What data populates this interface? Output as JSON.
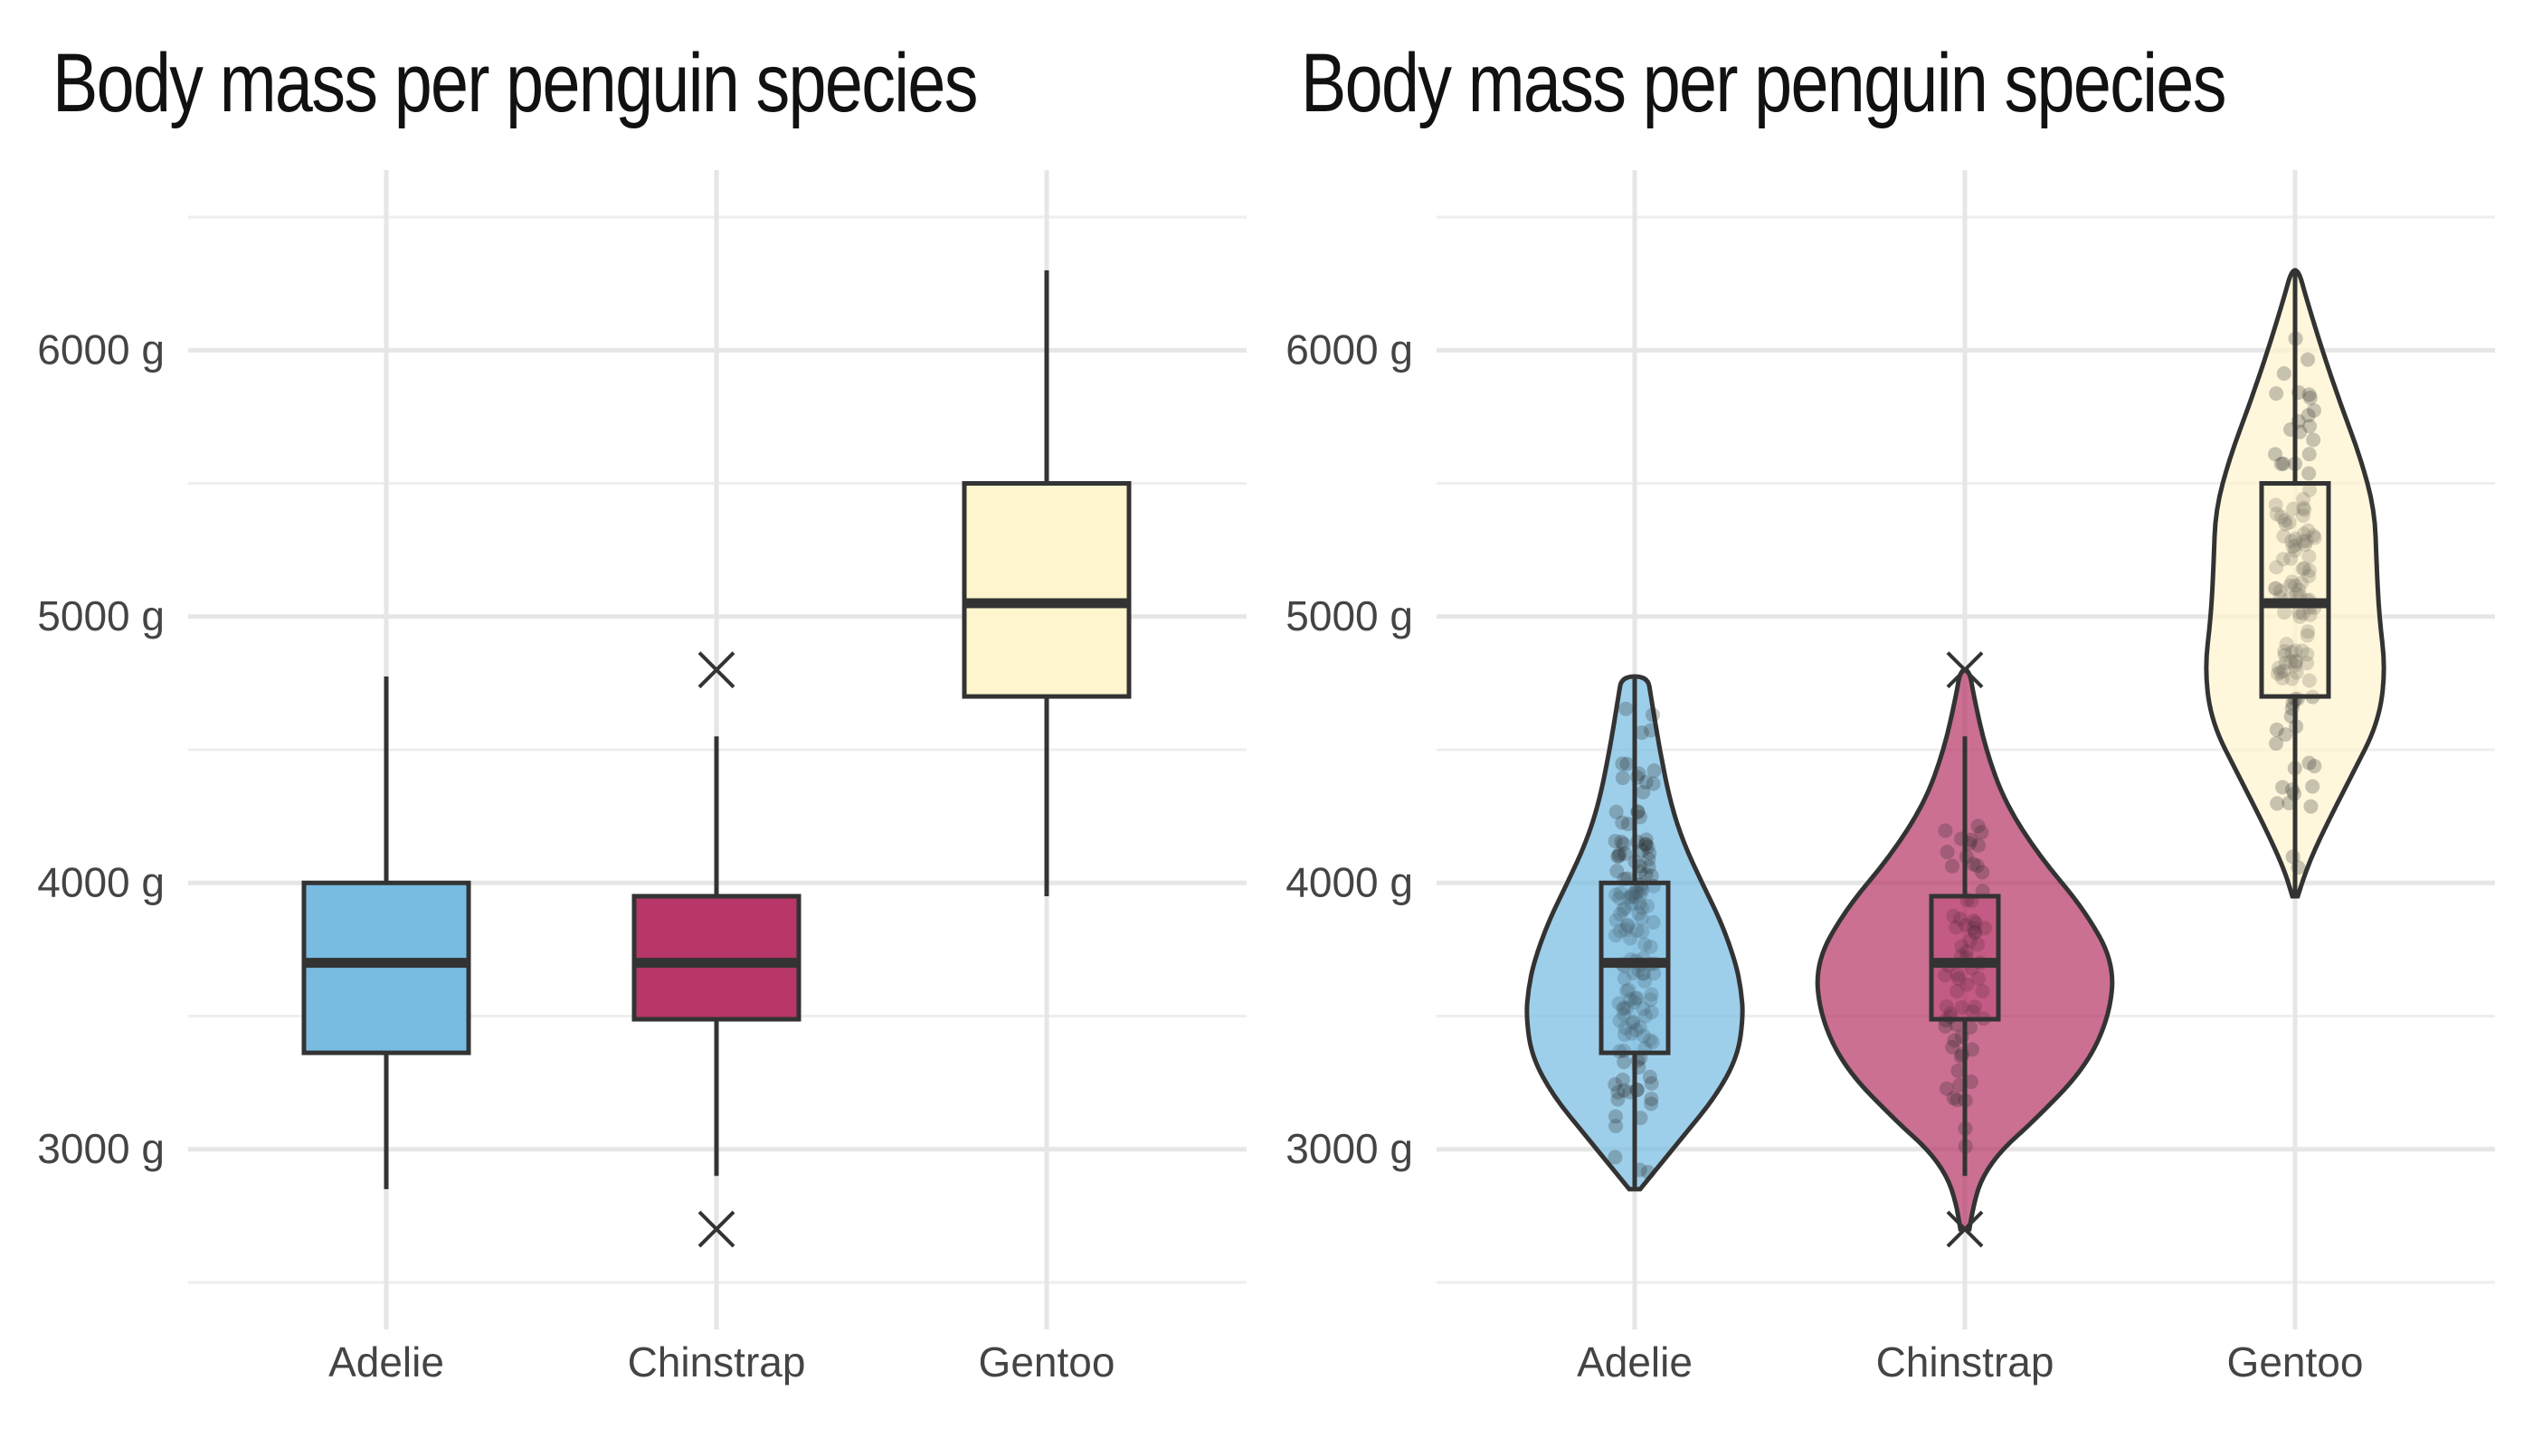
{
  "chart_data": [
    {
      "type": "boxplot",
      "title": "Body mass per penguin species",
      "xlabel": "",
      "ylabel": "",
      "categories": [
        "Adelie",
        "Chinstrap",
        "Gentoo"
      ],
      "y_ticks": [
        "3000 g",
        "4000 g",
        "5000 g",
        "6000 g"
      ],
      "ylim": [
        2500,
        6500
      ],
      "grid": true,
      "colors": [
        "#78BCE2",
        "#B73769",
        "#FEF4CE"
      ],
      "boxes": [
        {
          "category": "Adelie",
          "min": 2850,
          "q1": 3362,
          "median": 3700,
          "q3": 4000,
          "max": 4775,
          "outliers": []
        },
        {
          "category": "Chinstrap",
          "min": 2900,
          "q1": 3488,
          "median": 3700,
          "q3": 3950,
          "max": 4550,
          "outliers": [
            4800,
            2700
          ]
        },
        {
          "category": "Gentoo",
          "min": 3950,
          "q1": 4700,
          "median": 5050,
          "q3": 5500,
          "max": 6300,
          "outliers": []
        }
      ]
    },
    {
      "type": "violin",
      "title": "Body mass per penguin species",
      "xlabel": "",
      "ylabel": "",
      "categories": [
        "Adelie",
        "Chinstrap",
        "Gentoo"
      ],
      "y_ticks": [
        "3000 g",
        "4000 g",
        "5000 g",
        "6000 g"
      ],
      "ylim": [
        2500,
        6500
      ],
      "grid": true,
      "colors": [
        "#78BCE2",
        "#B73769",
        "#FEF4CE"
      ],
      "overlays": [
        "boxplot",
        "jittered points"
      ],
      "boxes": [
        {
          "category": "Adelie",
          "min": 2850,
          "q1": 3362,
          "median": 3700,
          "q3": 4000,
          "max": 4775,
          "outliers": []
        },
        {
          "category": "Chinstrap",
          "min": 2900,
          "q1": 3488,
          "median": 3700,
          "q3": 3950,
          "max": 4550,
          "outliers": [
            4800,
            2700
          ]
        },
        {
          "category": "Gentoo",
          "min": 3950,
          "q1": 4700,
          "median": 5050,
          "q3": 5500,
          "max": 6300,
          "outliers": []
        }
      ],
      "density_profiles": [
        {
          "category": "Adelie",
          "range": [
            2850,
            4775
          ],
          "y": [
            2850,
            2950,
            3050,
            3200,
            3350,
            3500,
            3600,
            3700,
            3850,
            4000,
            4150,
            4300,
            4500,
            4700,
            4775
          ],
          "width": [
            0.05,
            0.25,
            0.45,
            0.75,
            0.95,
            1.0,
            0.98,
            0.93,
            0.8,
            0.62,
            0.45,
            0.33,
            0.23,
            0.15,
            0.12
          ]
        },
        {
          "category": "Chinstrap",
          "range": [
            2700,
            4800
          ],
          "y": [
            2700,
            2800,
            2900,
            3000,
            3100,
            3300,
            3500,
            3700,
            3900,
            4100,
            4300,
            4500,
            4700,
            4800
          ],
          "width": [
            0.03,
            0.06,
            0.12,
            0.25,
            0.45,
            0.8,
            0.97,
            1.0,
            0.8,
            0.5,
            0.27,
            0.14,
            0.06,
            0.03
          ]
        },
        {
          "category": "Gentoo",
          "range": [
            3950,
            6300
          ],
          "y": [
            3950,
            4050,
            4200,
            4400,
            4600,
            4800,
            5000,
            5200,
            5400,
            5600,
            5800,
            6000,
            6200,
            6300
          ],
          "width": [
            0.03,
            0.12,
            0.32,
            0.62,
            0.92,
            1.0,
            0.93,
            0.9,
            0.88,
            0.72,
            0.5,
            0.3,
            0.12,
            0.04
          ]
        }
      ]
    }
  ]
}
